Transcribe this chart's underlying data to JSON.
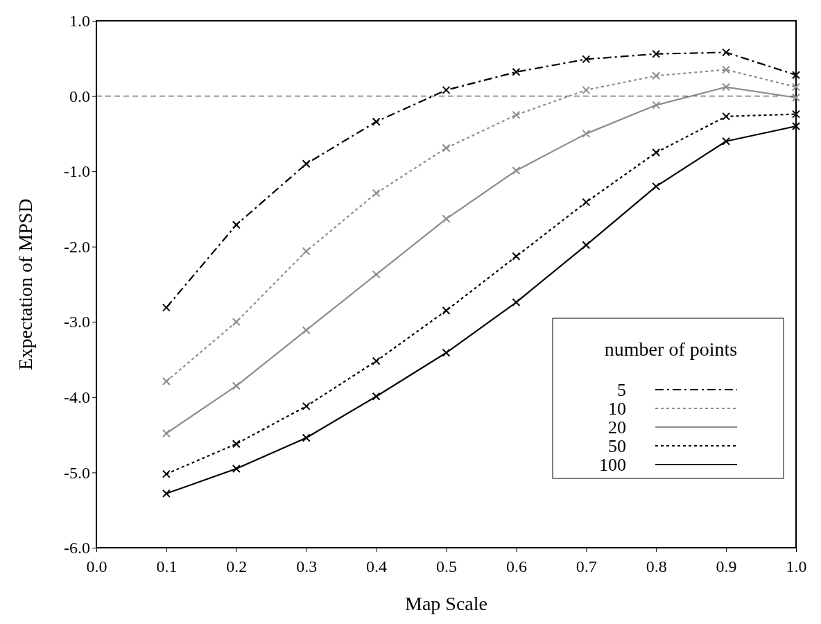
{
  "chart_data": {
    "type": "line",
    "xlabel": "Map Scale",
    "ylabel": "Expectation of MPSD",
    "legend_title": "number of points",
    "legend": "bottom right",
    "marker": "cross",
    "grid": false,
    "x": [
      0.1,
      0.2,
      0.3,
      0.4,
      0.5,
      0.6,
      0.7,
      0.8,
      0.9,
      1.0
    ],
    "xlim": [
      0,
      1.0
    ],
    "ylim": [
      -6,
      1
    ],
    "xticks": [
      {
        "value": 0,
        "label": "0.0"
      },
      {
        "value": 0.1,
        "label": "0.1"
      },
      {
        "value": 0.2,
        "label": "0.2"
      },
      {
        "value": 0.3,
        "label": "0.3"
      },
      {
        "value": 0.4,
        "label": "0.4"
      },
      {
        "value": 0.5,
        "label": "0.5"
      },
      {
        "value": 0.6,
        "label": "0.6"
      },
      {
        "value": 0.7,
        "label": "0.7"
      },
      {
        "value": 0.8,
        "label": "0.8"
      },
      {
        "value": 0.9,
        "label": "0.9"
      },
      {
        "value": 1,
        "label": "1.0"
      }
    ],
    "yticks": [
      {
        "value": -6,
        "label": "-6.0"
      },
      {
        "value": -5,
        "label": "-5.0"
      },
      {
        "value": -4,
        "label": "-4.0"
      },
      {
        "value": -3,
        "label": "-3.0"
      },
      {
        "value": -2,
        "label": "-2.0"
      },
      {
        "value": -1,
        "label": "-1.0"
      },
      {
        "value": 0,
        "label": "0.0"
      },
      {
        "value": 1,
        "label": "1.0"
      }
    ],
    "ref_lines": [
      {
        "axis": "y",
        "value": 0,
        "color": "#000000",
        "line_style": "dashed"
      }
    ],
    "series": [
      {
        "name": "5",
        "color": "#000000",
        "line_style": "dashdot",
        "values": [
          -2.81,
          -1.71,
          -0.9,
          -0.34,
          0.08,
          0.32,
          0.49,
          0.56,
          0.58,
          0.28
        ]
      },
      {
        "name": "10",
        "color": "#8c8c8c",
        "line_style": "dotted",
        "values": [
          -3.79,
          -3.0,
          -2.06,
          -1.29,
          -0.69,
          -0.25,
          0.08,
          0.27,
          0.35,
          0.12
        ]
      },
      {
        "name": "20",
        "color": "#8c8c8c",
        "line_style": "solid",
        "values": [
          -4.48,
          -3.85,
          -3.11,
          -2.37,
          -1.63,
          -0.99,
          -0.5,
          -0.12,
          0.12,
          -0.02
        ]
      },
      {
        "name": "50",
        "color": "#000000",
        "line_style": "dotted",
        "values": [
          -5.02,
          -4.62,
          -4.12,
          -3.52,
          -2.85,
          -2.13,
          -1.41,
          -0.75,
          -0.27,
          -0.24
        ]
      },
      {
        "name": "100",
        "color": "#000000",
        "line_style": "solid",
        "values": [
          -5.28,
          -4.95,
          -4.54,
          -3.99,
          -3.41,
          -2.74,
          -1.98,
          -1.2,
          -0.6,
          -0.4
        ]
      }
    ]
  }
}
